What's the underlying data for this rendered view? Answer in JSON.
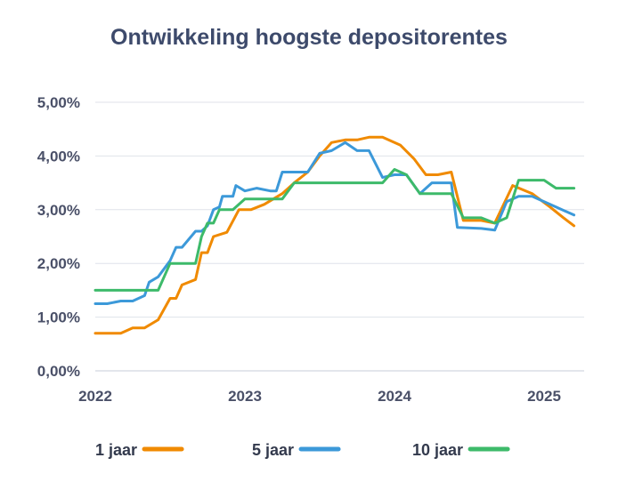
{
  "chart_data": {
    "type": "line",
    "title": "Ontwikkeling hoogste depositorentes",
    "xlabel": "",
    "ylabel": "",
    "x_ticks": [
      "2022",
      "2023",
      "2024",
      "2025"
    ],
    "y_ticks": [
      "0,00%",
      "1,00%",
      "2,00%",
      "3,00%",
      "4,00%",
      "5,00%"
    ],
    "ylim": [
      0,
      5.0
    ],
    "xlim": [
      2022.0,
      2025.2
    ],
    "grid": "horizontal",
    "legend_position": "bottom",
    "series": [
      {
        "name": "1 jaar",
        "color": "#f08a00",
        "points": [
          [
            2022.0,
            0.7
          ],
          [
            2022.17,
            0.7
          ],
          [
            2022.25,
            0.8
          ],
          [
            2022.33,
            0.8
          ],
          [
            2022.42,
            0.95
          ],
          [
            2022.5,
            1.35
          ],
          [
            2022.54,
            1.35
          ],
          [
            2022.58,
            1.6
          ],
          [
            2022.67,
            1.7
          ],
          [
            2022.71,
            2.2
          ],
          [
            2022.75,
            2.2
          ],
          [
            2022.79,
            2.5
          ],
          [
            2022.88,
            2.58
          ],
          [
            2022.96,
            3.0
          ],
          [
            2023.04,
            3.0
          ],
          [
            2023.13,
            3.1
          ],
          [
            2023.25,
            3.3
          ],
          [
            2023.33,
            3.5
          ],
          [
            2023.42,
            3.7
          ],
          [
            2023.5,
            4.0
          ],
          [
            2023.58,
            4.25
          ],
          [
            2023.67,
            4.3
          ],
          [
            2023.75,
            4.3
          ],
          [
            2023.83,
            4.35
          ],
          [
            2023.92,
            4.35
          ],
          [
            2024.04,
            4.2
          ],
          [
            2024.13,
            3.95
          ],
          [
            2024.21,
            3.65
          ],
          [
            2024.29,
            3.65
          ],
          [
            2024.38,
            3.7
          ],
          [
            2024.46,
            2.8
          ],
          [
            2024.58,
            2.8
          ],
          [
            2024.67,
            2.75
          ],
          [
            2024.79,
            3.45
          ],
          [
            2024.92,
            3.3
          ],
          [
            2025.04,
            3.05
          ],
          [
            2025.13,
            2.85
          ],
          [
            2025.2,
            2.7
          ]
        ]
      },
      {
        "name": "5 jaar",
        "color": "#3c99d9",
        "points": [
          [
            2022.0,
            1.25
          ],
          [
            2022.08,
            1.25
          ],
          [
            2022.17,
            1.3
          ],
          [
            2022.25,
            1.3
          ],
          [
            2022.33,
            1.4
          ],
          [
            2022.36,
            1.65
          ],
          [
            2022.42,
            1.75
          ],
          [
            2022.5,
            2.05
          ],
          [
            2022.54,
            2.3
          ],
          [
            2022.58,
            2.3
          ],
          [
            2022.67,
            2.6
          ],
          [
            2022.71,
            2.6
          ],
          [
            2022.75,
            2.7
          ],
          [
            2022.79,
            3.0
          ],
          [
            2022.83,
            3.05
          ],
          [
            2022.85,
            3.25
          ],
          [
            2022.92,
            3.25
          ],
          [
            2022.94,
            3.45
          ],
          [
            2023.0,
            3.35
          ],
          [
            2023.08,
            3.4
          ],
          [
            2023.17,
            3.35
          ],
          [
            2023.21,
            3.35
          ],
          [
            2023.25,
            3.7
          ],
          [
            2023.38,
            3.7
          ],
          [
            2023.42,
            3.7
          ],
          [
            2023.5,
            4.05
          ],
          [
            2023.58,
            4.1
          ],
          [
            2023.67,
            4.25
          ],
          [
            2023.75,
            4.1
          ],
          [
            2023.83,
            4.1
          ],
          [
            2023.92,
            3.6
          ],
          [
            2024.0,
            3.65
          ],
          [
            2024.08,
            3.65
          ],
          [
            2024.17,
            3.3
          ],
          [
            2024.25,
            3.5
          ],
          [
            2024.33,
            3.5
          ],
          [
            2024.38,
            3.5
          ],
          [
            2024.42,
            2.67
          ],
          [
            2024.58,
            2.65
          ],
          [
            2024.67,
            2.62
          ],
          [
            2024.75,
            3.15
          ],
          [
            2024.83,
            3.25
          ],
          [
            2024.92,
            3.25
          ],
          [
            2025.0,
            3.15
          ],
          [
            2025.08,
            3.05
          ],
          [
            2025.2,
            2.9
          ]
        ]
      },
      {
        "name": "10 jaar",
        "color": "#3dba6a",
        "points": [
          [
            2022.0,
            1.5
          ],
          [
            2022.42,
            1.5
          ],
          [
            2022.5,
            2.0
          ],
          [
            2022.67,
            2.0
          ],
          [
            2022.71,
            2.5
          ],
          [
            2022.75,
            2.75
          ],
          [
            2022.79,
            2.75
          ],
          [
            2022.83,
            3.0
          ],
          [
            2022.92,
            3.0
          ],
          [
            2023.0,
            3.2
          ],
          [
            2023.17,
            3.2
          ],
          [
            2023.25,
            3.2
          ],
          [
            2023.33,
            3.5
          ],
          [
            2023.42,
            3.5
          ],
          [
            2023.92,
            3.5
          ],
          [
            2024.0,
            3.75
          ],
          [
            2024.08,
            3.65
          ],
          [
            2024.17,
            3.3
          ],
          [
            2024.38,
            3.3
          ],
          [
            2024.46,
            2.85
          ],
          [
            2024.58,
            2.85
          ],
          [
            2024.67,
            2.75
          ],
          [
            2024.75,
            2.85
          ],
          [
            2024.83,
            3.55
          ],
          [
            2025.0,
            3.55
          ],
          [
            2025.08,
            3.4
          ],
          [
            2025.2,
            3.4
          ]
        ]
      }
    ]
  }
}
